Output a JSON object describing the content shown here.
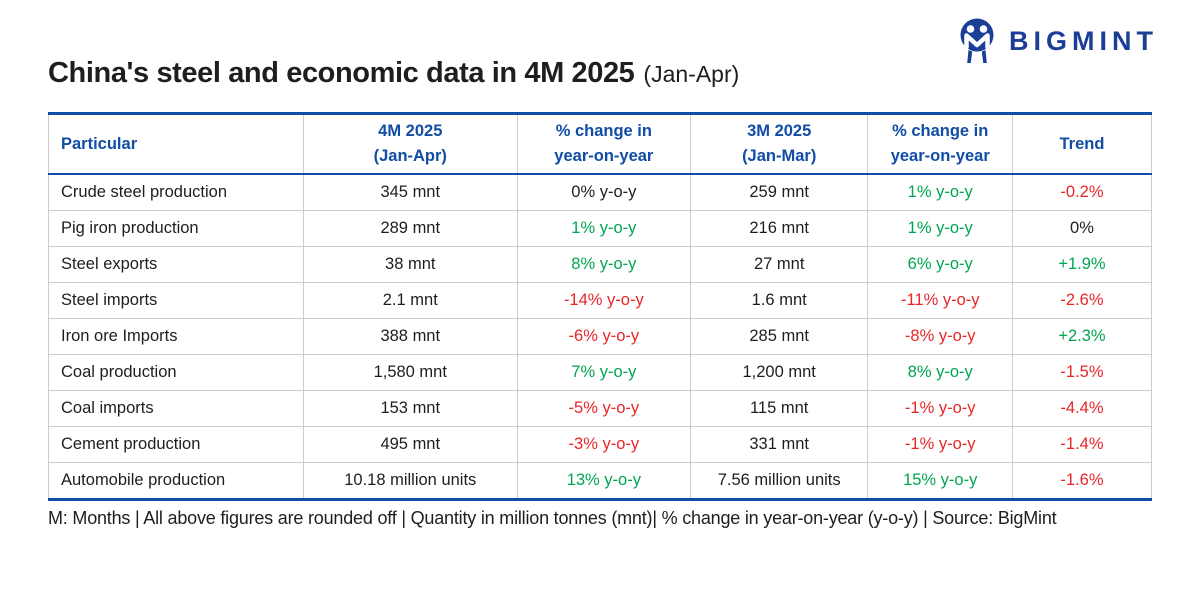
{
  "colors": {
    "header_blue": "#114DA5",
    "logo_navy": "#1B3F97",
    "positive_green": "#00A651",
    "negative_red": "#E92528",
    "text_ink": "#1E1E1E",
    "grid_gray": "#CCCCCC"
  },
  "logo": {
    "brand": "BIGMINT"
  },
  "title": {
    "main": "China's steel and economic data in 4M 2025",
    "suffix": "(Jan-Apr)"
  },
  "chart_data": {
    "type": "table",
    "title": "China's steel and economic data in 4M 2025 (Jan-Apr)",
    "columns": [
      {
        "line1": "Particular",
        "line2": ""
      },
      {
        "line1": "4M 2025",
        "line2": "(Jan-Apr)"
      },
      {
        "line1": "% change in",
        "line2": "year-on-year"
      },
      {
        "line1": "3M 2025",
        "line2": "(Jan-Mar)"
      },
      {
        "line1": "% change in",
        "line2": "year-on-year"
      },
      {
        "line1": "Trend",
        "line2": ""
      }
    ],
    "rows": [
      {
        "particular": "Crude steel production",
        "value_4m": "345 mnt",
        "change_4m": "0% y-o-y",
        "change_4m_color": "neutral",
        "value_3m": "259 mnt",
        "change_3m": "1% y-o-y",
        "change_3m_color": "green",
        "trend": "-0.2%",
        "trend_color": "red"
      },
      {
        "particular": "Pig iron production",
        "value_4m": "289 mnt",
        "change_4m": "1% y-o-y",
        "change_4m_color": "green",
        "value_3m": "216 mnt",
        "change_3m": "1% y-o-y",
        "change_3m_color": "green",
        "trend": "0%",
        "trend_color": "neutral"
      },
      {
        "particular": "Steel exports",
        "value_4m": "38 mnt",
        "change_4m": "8% y-o-y",
        "change_4m_color": "green",
        "value_3m": "27 mnt",
        "change_3m": "6% y-o-y",
        "change_3m_color": "green",
        "trend": "+1.9%",
        "trend_color": "green"
      },
      {
        "particular": "Steel imports",
        "value_4m": "2.1 mnt",
        "change_4m": "-14% y-o-y",
        "change_4m_color": "red",
        "value_3m": "1.6 mnt",
        "change_3m": "-11% y-o-y",
        "change_3m_color": "red",
        "trend": "-2.6%",
        "trend_color": "red"
      },
      {
        "particular": "Iron ore Imports",
        "value_4m": "388 mnt",
        "change_4m": "-6% y-o-y",
        "change_4m_color": "red",
        "value_3m": "285 mnt",
        "change_3m": "-8% y-o-y",
        "change_3m_color": "red",
        "trend": "+2.3%",
        "trend_color": "green"
      },
      {
        "particular": "Coal production",
        "value_4m": "1,580 mnt",
        "change_4m": "7% y-o-y",
        "change_4m_color": "green",
        "value_3m": "1,200 mnt",
        "change_3m": "8% y-o-y",
        "change_3m_color": "green",
        "trend": "-1.5%",
        "trend_color": "red"
      },
      {
        "particular": "Coal imports",
        "value_4m": "153 mnt",
        "change_4m": "-5% y-o-y",
        "change_4m_color": "red",
        "value_3m": "115 mnt",
        "change_3m": "-1% y-o-y",
        "change_3m_color": "red",
        "trend": "-4.4%",
        "trend_color": "red"
      },
      {
        "particular": "Cement production",
        "value_4m": "495 mnt",
        "change_4m": "-3% y-o-y",
        "change_4m_color": "red",
        "value_3m": "331 mnt",
        "change_3m": "-1% y-o-y",
        "change_3m_color": "red",
        "trend": "-1.4%",
        "trend_color": "red"
      },
      {
        "particular": "Automobile production",
        "value_4m": "10.18 million units",
        "change_4m": "13% y-o-y",
        "change_4m_color": "green",
        "value_3m": "7.56 million units",
        "change_3m": "15% y-o-y",
        "change_3m_color": "green",
        "trend": "-1.6%",
        "trend_color": "red"
      }
    ]
  },
  "footnote": "M: Months | All above figures are rounded off | Quantity in million tonnes (mnt)| % change in year-on-year (y-o-y) | Source: BigMint"
}
